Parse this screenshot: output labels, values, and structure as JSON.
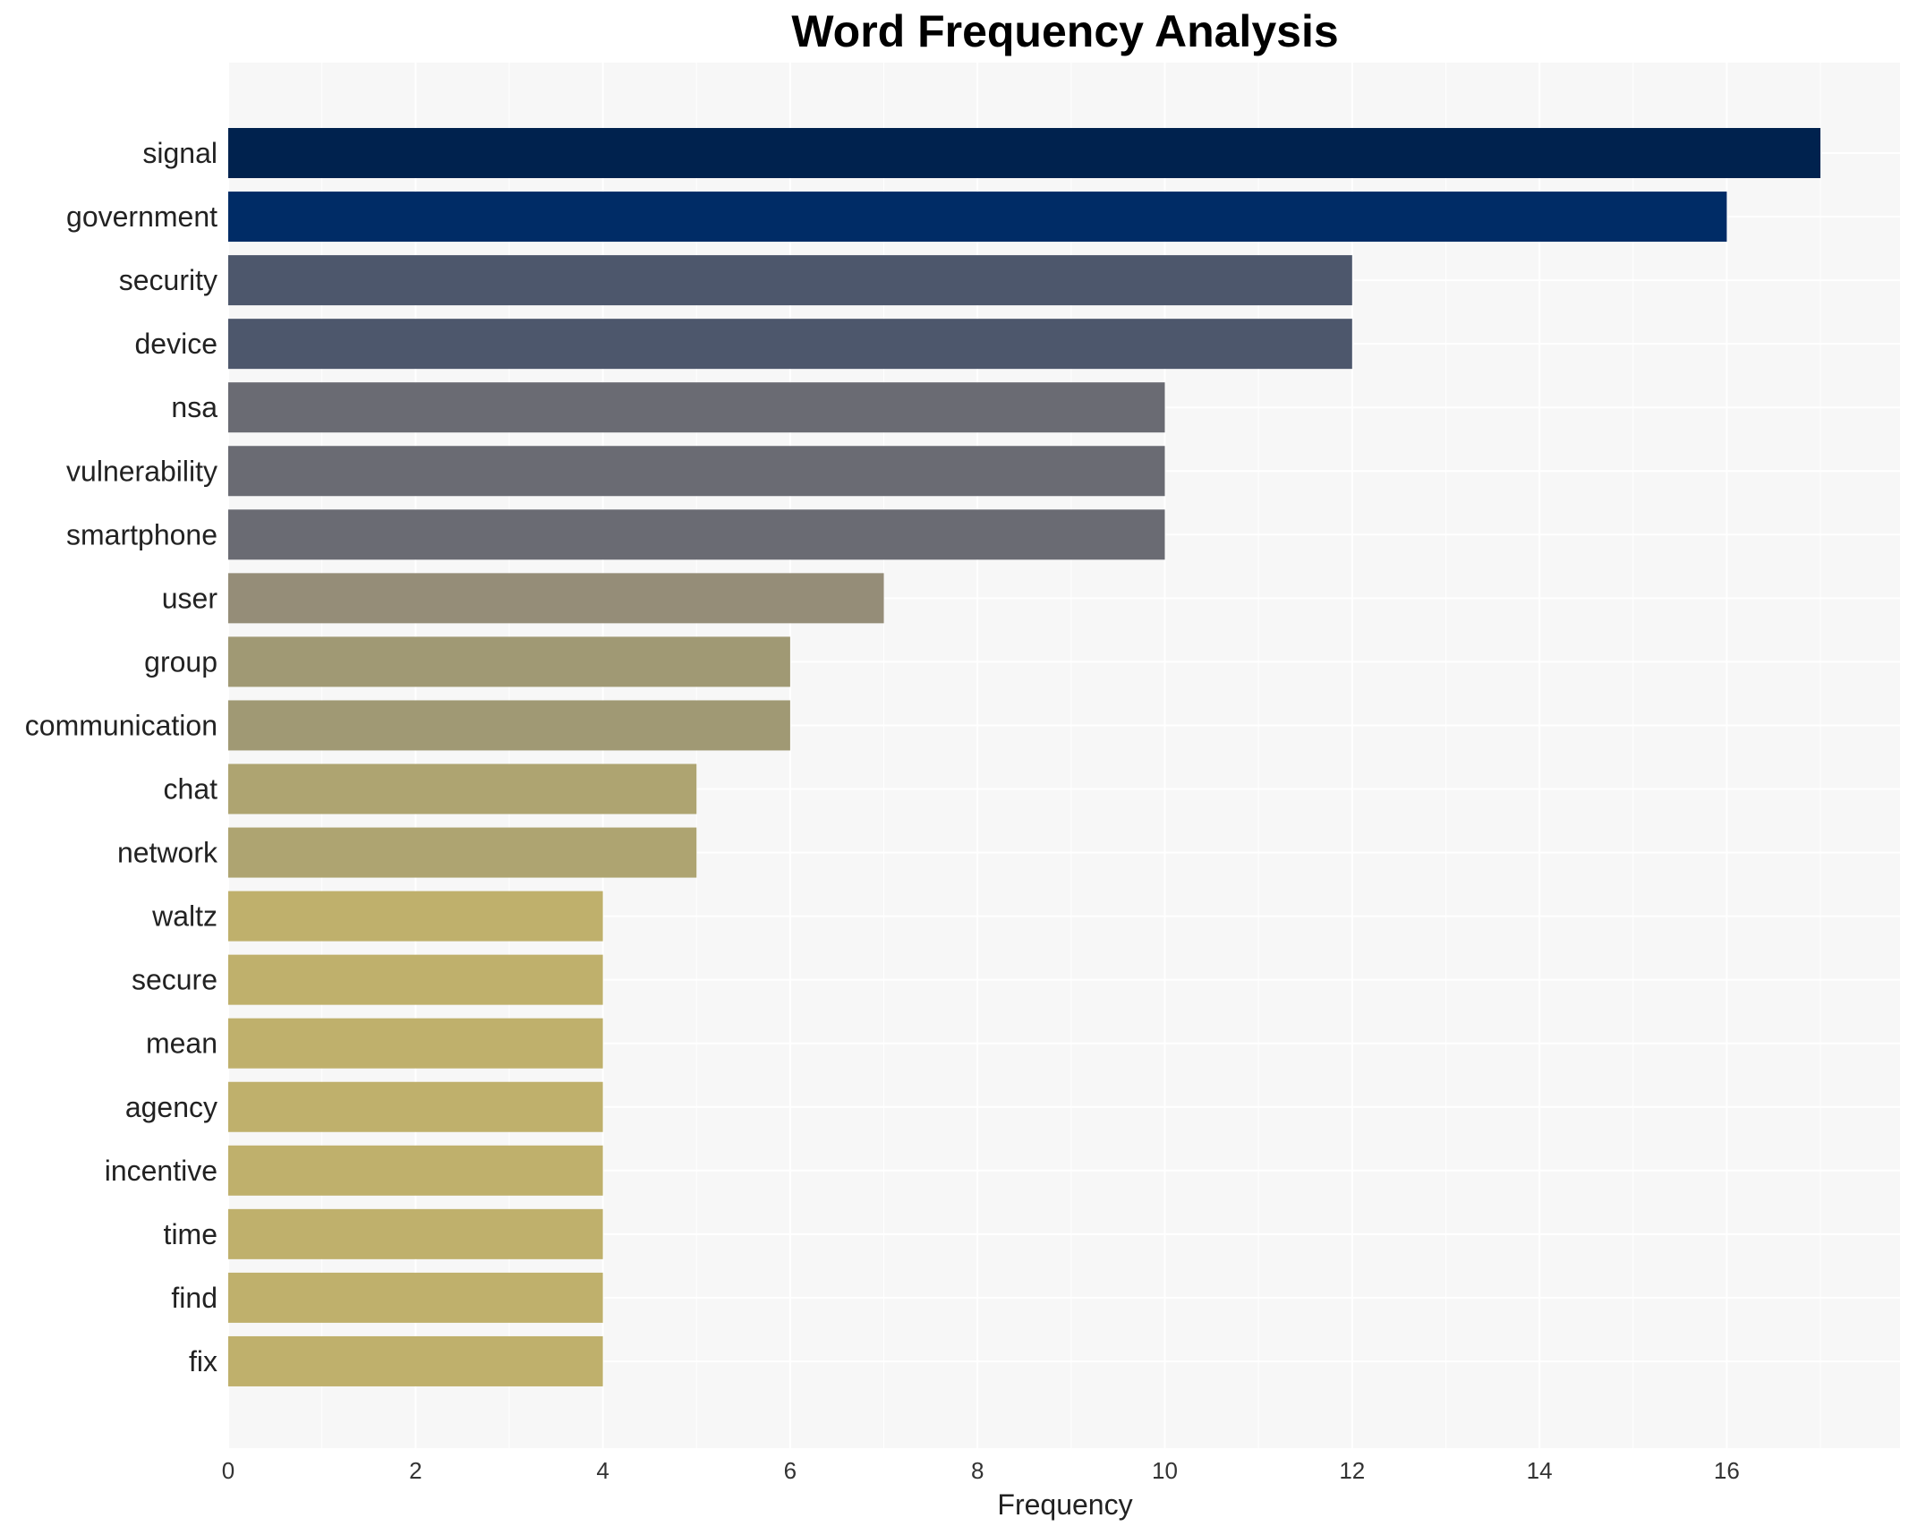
{
  "chart_data": {
    "type": "bar",
    "orientation": "horizontal",
    "title": "Word Frequency Analysis",
    "xlabel": "Frequency",
    "ylabel": "",
    "categories": [
      "signal",
      "government",
      "security",
      "device",
      "nsa",
      "vulnerability",
      "smartphone",
      "user",
      "group",
      "communication",
      "chat",
      "network",
      "waltz",
      "secure",
      "mean",
      "agency",
      "incentive",
      "time",
      "find",
      "fix"
    ],
    "values": [
      17,
      16,
      12,
      12,
      10,
      10,
      10,
      7,
      6,
      6,
      5,
      5,
      4,
      4,
      4,
      4,
      4,
      4,
      4,
      4
    ],
    "xlim": [
      0,
      17.85
    ],
    "xticks": [
      0,
      2,
      4,
      6,
      8,
      10,
      12,
      14,
      16
    ],
    "grid": true,
    "legend": "none",
    "colors": {
      "background": "#f7f7f7",
      "grid": "#ffffff",
      "bars": [
        "#00224e",
        "#002c66",
        "#4d576c",
        "#4d576c",
        "#6a6b73",
        "#6a6b73",
        "#6a6b73",
        "#958d78",
        "#a09974",
        "#a09974",
        "#aea471",
        "#aea471",
        "#bfb06c",
        "#bfb06c",
        "#bfb06c",
        "#bfb06c",
        "#bfb06c",
        "#bfb06c",
        "#bfb06c",
        "#bfb06c"
      ]
    }
  }
}
